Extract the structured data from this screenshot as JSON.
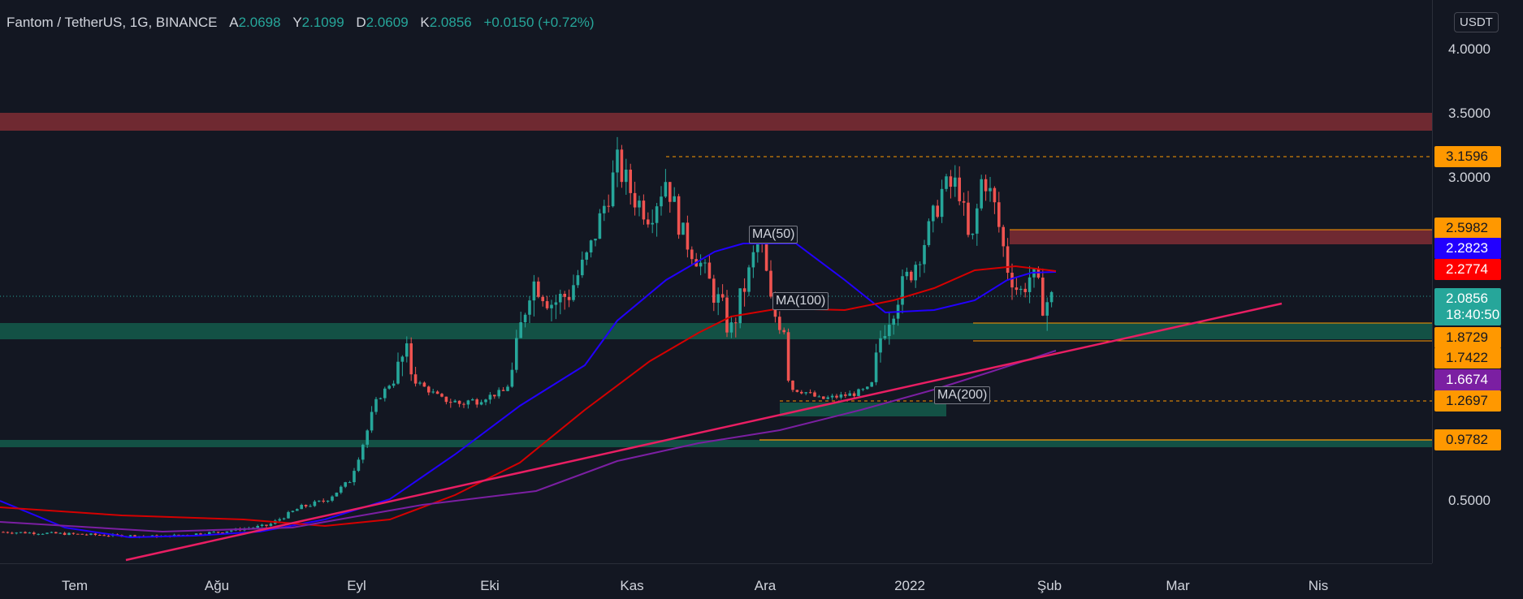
{
  "header": {
    "symbol": "Fantom / TetherUS, 1G, BINANCE",
    "open_label": "A",
    "open": "2.0698",
    "high_label": "Y",
    "high": "2.1099",
    "low_label": "D",
    "low": "2.0609",
    "close_label": "K",
    "close": "2.0856",
    "change": "+0.0150 (+0.72%)"
  },
  "currency": "USDT",
  "price_ticks": [
    "4.0000",
    "3.5000",
    "3.0000",
    "0.5000"
  ],
  "price_tags": [
    {
      "label": "3.1596",
      "bg": "#ff9800",
      "fg": "#131722"
    },
    {
      "label": "2.5982",
      "bg": "#ff9800",
      "fg": "#131722"
    },
    {
      "label": "2.2823",
      "bg": "#2200ff",
      "fg": "#ffffff"
    },
    {
      "label": "2.2774",
      "bg": "#ff0000",
      "fg": "#ffffff"
    },
    {
      "label": "1.8729",
      "bg": "#ff9800",
      "fg": "#131722"
    },
    {
      "label": "1.7422",
      "bg": "#ff9800",
      "fg": "#131722"
    },
    {
      "label": "1.6674",
      "bg": "#7b1fa2",
      "fg": "#ffffff"
    },
    {
      "label": "1.2697",
      "bg": "#ff9800",
      "fg": "#131722"
    },
    {
      "label": "0.9782",
      "bg": "#ff9800",
      "fg": "#131722"
    }
  ],
  "last_price": {
    "label": "2.0856",
    "countdown": "18:40:50",
    "bg": "#26a69a"
  },
  "time_labels": [
    "Tem",
    "Ağu",
    "Eyl",
    "Eki",
    "Kas",
    "Ara",
    "2022",
    "Şub",
    "Mar",
    "Nis"
  ],
  "ma_labels": {
    "ma50": "MA(50)",
    "ma100": "MA(100)",
    "ma200": "MA(200)"
  },
  "colors": {
    "up": "#26a69a",
    "down": "#ef5350",
    "ma50": "#2200ff",
    "ma100": "#d50000",
    "ma200": "#7b1fa2",
    "trendline": "#e91e63",
    "resistance": "#7a2b33",
    "support": "#135448"
  },
  "chart_data": {
    "type": "candlestick",
    "title": "Fantom / TetherUS, 1G, BINANCE",
    "x_axis": [
      "Tem",
      "Ağu",
      "Eyl",
      "Eki",
      "Kas",
      "Ara",
      "2022",
      "Şub",
      "Mar",
      "Nis"
    ],
    "y_ticks": [
      4.0,
      3.5,
      3.0,
      0.5
    ],
    "price_levels": [
      3.1596,
      2.5982,
      1.8729,
      1.7422,
      1.2697,
      0.9782
    ],
    "moving_averages": [
      {
        "name": "MA(50)",
        "last": 2.2823
      },
      {
        "name": "MA(100)",
        "last": 2.2774
      },
      {
        "name": "MA(200)",
        "last": 1.6674
      }
    ],
    "last": 2.0856,
    "close_path": [
      [
        "Tem",
        0.26
      ],
      [
        "Ağu",
        0.24
      ],
      [
        "Eyl",
        0.65
      ],
      [
        "Eyl+",
        1.8
      ],
      [
        "Eki",
        1.3
      ],
      [
        "Eki+",
        2.2
      ],
      [
        "Kas",
        3.0
      ],
      [
        "Kas+",
        2.6
      ],
      [
        "Ara",
        1.35
      ],
      [
        "2022",
        3.0
      ],
      [
        "Şub",
        2.1
      ]
    ]
  }
}
